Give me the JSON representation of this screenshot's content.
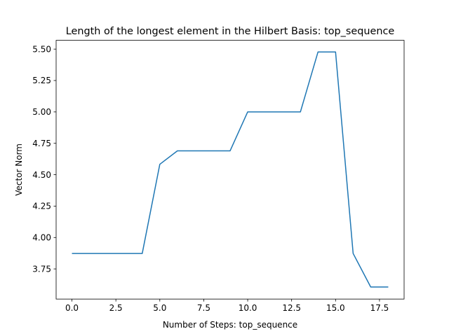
{
  "chart_data": {
    "type": "line",
    "title": "Length of the longest element in the Hilbert Basis: top_sequence",
    "xlabel": "Number of Steps: top_sequence",
    "ylabel": "Vector Norm",
    "xlim": [
      -0.9,
      18.9
    ],
    "ylim": [
      3.51,
      5.57
    ],
    "x_ticks": [
      0.0,
      2.5,
      5.0,
      7.5,
      10.0,
      12.5,
      15.0,
      17.5
    ],
    "x_tick_labels": [
      "0.0",
      "2.5",
      "5.0",
      "7.5",
      "10.0",
      "12.5",
      "15.0",
      "17.5"
    ],
    "y_ticks": [
      3.75,
      4.0,
      4.25,
      4.5,
      4.75,
      5.0,
      5.25,
      5.5
    ],
    "y_tick_labels": [
      "3.75",
      "4.00",
      "4.25",
      "4.50",
      "4.75",
      "5.00",
      "5.25",
      "5.50"
    ],
    "grid": false,
    "legend": "none",
    "series": [
      {
        "color": "#1f77b4",
        "x": [
          0,
          1,
          2,
          3,
          4,
          5,
          6,
          7,
          8,
          9,
          10,
          11,
          12,
          13,
          14,
          15,
          16,
          17,
          18
        ],
        "y": [
          3.873,
          3.873,
          3.873,
          3.873,
          3.873,
          4.583,
          4.69,
          4.69,
          4.69,
          4.69,
          5.0,
          5.0,
          5.0,
          5.0,
          5.477,
          5.477,
          3.873,
          3.606,
          3.606
        ]
      }
    ]
  }
}
